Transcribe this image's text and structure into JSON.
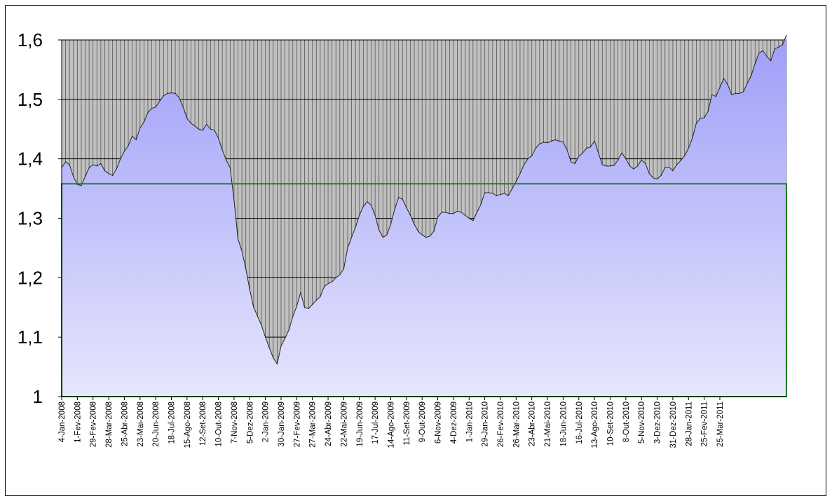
{
  "chart_data": {
    "type": "area",
    "x_tick_labels": [
      "4-Jan-2008",
      "1-Fev-2008",
      "29-Fev-2008",
      "28-Mar-2008",
      "25-Abr-2008",
      "23-Mai-2008",
      "20-Jun-2008",
      "18-Jul-2008",
      "15-Ago-2008",
      "12-Set-2008",
      "10-Out-2008",
      "7-Nov-2008",
      "5-Dez-2008",
      "2-Jan-2009",
      "30-Jan-2009",
      "27-Fev-2009",
      "27-Mar-2009",
      "24-Abr-2009",
      "22-Mai-2009",
      "19-Jun-2009",
      "17-Jul-2009",
      "14-Ago-2009",
      "11-Set-2009",
      "9-Out-2009",
      "6-Nov-2009",
      "4-Dez-2009",
      "1-Jan-2010",
      "29-Jan-2010",
      "26-Fev-2010",
      "26-Mar-2010",
      "23-Abr-2010",
      "21-Mai-2010",
      "18-Jun-2010",
      "16-Jul-2010",
      "13-Ago-2010",
      "10-Set-2010",
      "8-Out-2010",
      "5-Nov-2010",
      "3-Dez-2010",
      "31-Dez-2010",
      "28-Jan-2011",
      "25-Fev-2011",
      "25-Mar-2011"
    ],
    "y_tick_labels": [
      "1",
      "1,1",
      "1,2",
      "1,3",
      "1,4",
      "1,5",
      "1,6"
    ],
    "ylim": [
      1.0,
      1.6
    ],
    "grid": true,
    "reference_line": {
      "value": 1.358,
      "color": "#1e7e1e"
    },
    "series": [
      {
        "values": [
          1.385,
          1.395,
          1.39,
          1.37,
          1.357,
          1.355,
          1.37,
          1.385,
          1.39,
          1.388,
          1.392,
          1.38,
          1.375,
          1.372,
          1.383,
          1.4,
          1.413,
          1.422,
          1.438,
          1.432,
          1.452,
          1.462,
          1.478,
          1.485,
          1.487,
          1.497,
          1.506,
          1.51,
          1.511,
          1.51,
          1.503,
          1.487,
          1.468,
          1.46,
          1.455,
          1.45,
          1.448,
          1.458,
          1.45,
          1.448,
          1.435,
          1.415,
          1.398,
          1.385,
          1.33,
          1.265,
          1.245,
          1.215,
          1.18,
          1.15,
          1.135,
          1.12,
          1.1,
          1.082,
          1.065,
          1.055,
          1.085,
          1.098,
          1.112,
          1.135,
          1.152,
          1.175,
          1.15,
          1.148,
          1.155,
          1.162,
          1.168,
          1.185,
          1.19,
          1.193,
          1.2,
          1.205,
          1.215,
          1.25,
          1.268,
          1.285,
          1.305,
          1.32,
          1.328,
          1.322,
          1.305,
          1.28,
          1.268,
          1.272,
          1.29,
          1.315,
          1.335,
          1.332,
          1.318,
          1.305,
          1.29,
          1.278,
          1.272,
          1.268,
          1.27,
          1.278,
          1.302,
          1.31,
          1.31,
          1.308,
          1.308,
          1.312,
          1.31,
          1.305,
          1.3,
          1.296,
          1.31,
          1.323,
          1.343,
          1.343,
          1.342,
          1.338,
          1.34,
          1.342,
          1.338,
          1.35,
          1.362,
          1.375,
          1.39,
          1.4,
          1.405,
          1.418,
          1.425,
          1.428,
          1.427,
          1.43,
          1.432,
          1.43,
          1.428,
          1.415,
          1.395,
          1.392,
          1.404,
          1.41,
          1.418,
          1.42,
          1.43,
          1.41,
          1.39,
          1.388,
          1.388,
          1.389,
          1.398,
          1.41,
          1.4,
          1.388,
          1.383,
          1.388,
          1.398,
          1.392,
          1.375,
          1.368,
          1.366,
          1.372,
          1.385,
          1.386,
          1.38,
          1.39,
          1.397,
          1.405,
          1.418,
          1.435,
          1.46,
          1.468,
          1.469,
          1.48,
          1.508,
          1.505,
          1.52,
          1.535,
          1.525,
          1.508,
          1.51,
          1.51,
          1.513,
          1.527,
          1.54,
          1.56,
          1.578,
          1.582,
          1.572,
          1.565,
          1.585,
          1.588,
          1.592,
          1.608
        ]
      }
    ]
  }
}
